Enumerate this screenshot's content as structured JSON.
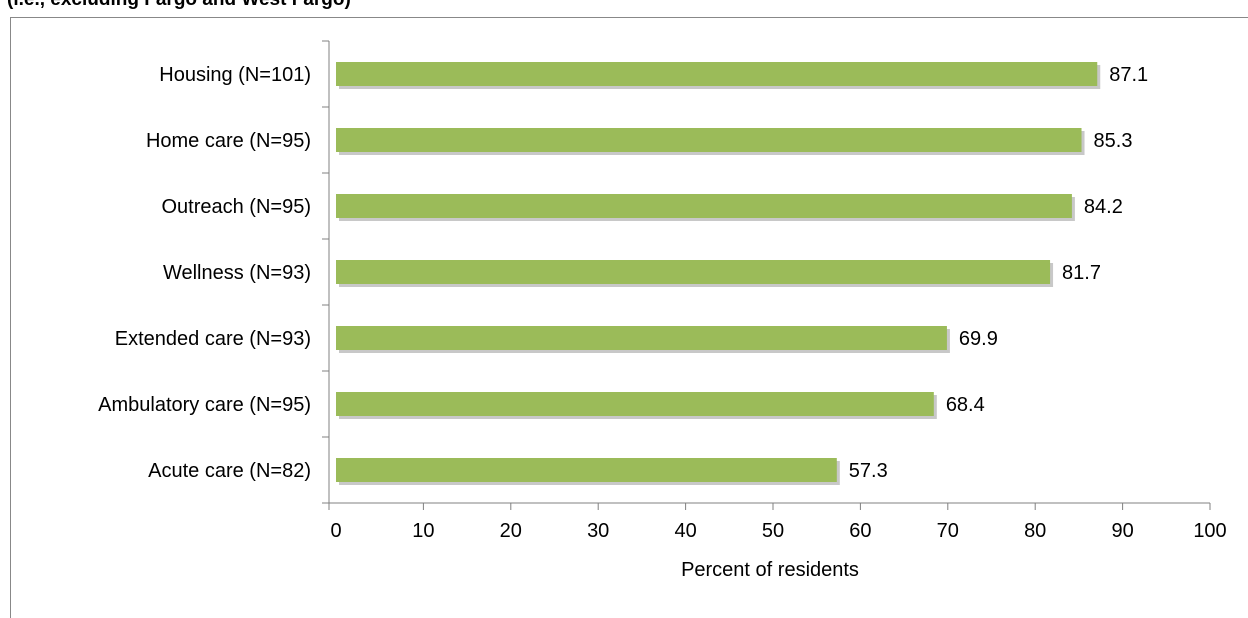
{
  "header": {
    "title_fragment": "(i.e., excluding Fargo and West Fargo)"
  },
  "chart_data": {
    "type": "bar",
    "orientation": "horizontal",
    "categories": [
      "Housing (N=101)",
      "Home care (N=95)",
      "Outreach (N=95)",
      "Wellness (N=93)",
      "Extended care (N=93)",
      "Ambulatory care (N=95)",
      "Acute care (N=82)"
    ],
    "values": [
      87.1,
      85.3,
      84.2,
      81.7,
      69.9,
      68.4,
      57.3
    ],
    "value_labels": [
      "87.1",
      "85.3",
      "84.2",
      "81.7",
      "69.9",
      "68.4",
      "57.3"
    ],
    "xlabel": "Percent of residents",
    "ylabel": "",
    "xlim": [
      0,
      100
    ],
    "x_ticks": [
      "0",
      "10",
      "20",
      "30",
      "40",
      "50",
      "60",
      "70",
      "80",
      "90",
      "100"
    ],
    "grid": false,
    "legend": "none",
    "colors": {
      "bar": "#9BBB59",
      "bar_shadow": "#C8C8C8",
      "axis": "#808080"
    }
  }
}
